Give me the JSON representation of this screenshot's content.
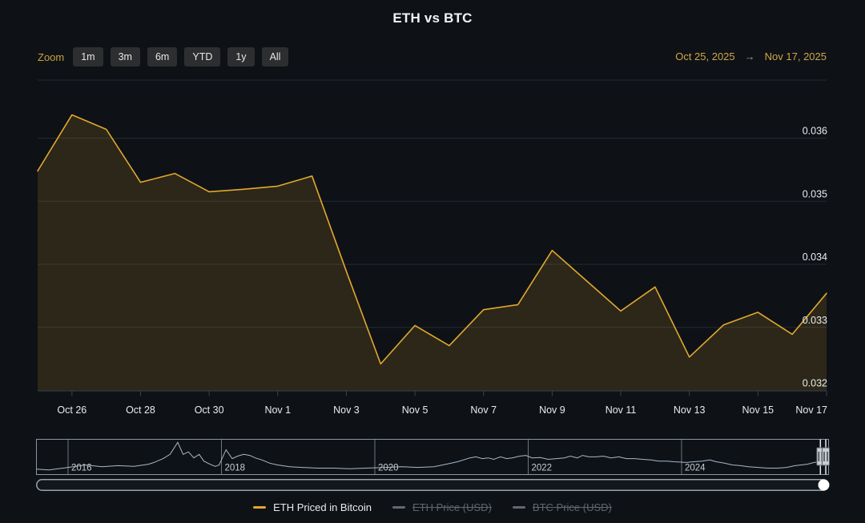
{
  "title": "ETH vs BTC",
  "toolbar": {
    "zoom_label": "Zoom",
    "range_buttons": [
      "1m",
      "3m",
      "6m",
      "YTD",
      "1y",
      "All"
    ],
    "date_from": "Oct 25, 2025",
    "arrow": "→",
    "date_to": "Nov 17, 2025"
  },
  "legend": [
    {
      "label": "ETH Priced in Bitcoin",
      "color": "#E2A82E",
      "enabled": true
    },
    {
      "label": "ETH Price (USD)",
      "color": "#62686F",
      "enabled": false
    },
    {
      "label": "BTC Price (USD)",
      "color": "#62686F",
      "enabled": false
    }
  ],
  "colors": {
    "background": "#0E1217",
    "accent_gold": "#E2A82E",
    "area_fill": "rgba(226,168,45,0.14)",
    "gold_text": "#CFA445",
    "grid": "#242A32",
    "axis_line": "#3A414C",
    "text_primary": "#E8EBEE",
    "text_muted": "#9AA1A9",
    "disabled": "#5F656D",
    "navigator_line": "#A9B7C6",
    "navigator_border": "#8E959D",
    "year_line": "#6E747C",
    "year_text": "#C9CDD2",
    "handle_fill": "#C9CCD1",
    "handle_stroke": "#5A5F66",
    "scrollbar_border": "#9AA1A9",
    "scrollbar_thumb": "#FFFFFF"
  },
  "chart_data": {
    "type": "line",
    "title": "ETH vs BTC",
    "series_name": "ETH Priced in Bitcoin",
    "xlabel": "",
    "ylabel": "",
    "ylim": [
      0.032,
      0.0369
    ],
    "grid": true,
    "legend_position": "bottom",
    "y_ticks": [
      0.036,
      0.035,
      0.034,
      0.033,
      0.032
    ],
    "y_tick_labels": [
      "0.036",
      "0.035",
      "0.034",
      "0.033",
      "0.032"
    ],
    "x_tick_labels": [
      "Oct 26",
      "Oct 28",
      "Oct 30",
      "Nov 1",
      "Nov 3",
      "Nov 5",
      "Nov 7",
      "Nov 9",
      "Nov 11",
      "Nov 13",
      "Nov 15",
      "Nov 17"
    ],
    "dates": [
      "Oct 25",
      "Oct 26",
      "Oct 27",
      "Oct 28",
      "Oct 29",
      "Oct 30",
      "Oct 31",
      "Nov 1",
      "Nov 2",
      "Nov 3",
      "Nov 4",
      "Nov 5",
      "Nov 6",
      "Nov 7",
      "Nov 8",
      "Nov 9",
      "Nov 10",
      "Nov 11",
      "Nov 12",
      "Nov 13",
      "Nov 14",
      "Nov 15",
      "Nov 16",
      "Nov 17"
    ],
    "values": [
      0.03548,
      0.03637,
      0.03614,
      0.0353,
      0.03544,
      0.03515,
      0.03519,
      0.03524,
      0.0354,
      0.03389,
      0.03242,
      0.03303,
      0.03271,
      0.03328,
      0.03336,
      0.03422,
      0.03374,
      0.03326,
      0.03364,
      0.03253,
      0.03304,
      0.03324,
      0.03289,
      0.03354
    ],
    "navigator": {
      "year_labels": [
        "2016",
        "2018",
        "2020",
        "2022",
        "2024"
      ],
      "year_values": [
        2016,
        2018,
        2020,
        2022,
        2024
      ],
      "selected_range_years": [
        2025.81,
        2025.88
      ],
      "points": [
        [
          2015.59,
          0.13
        ],
        [
          2015.75,
          0.11
        ],
        [
          2016.0,
          0.18
        ],
        [
          2016.23,
          0.25
        ],
        [
          2016.44,
          0.2
        ],
        [
          2016.65,
          0.23
        ],
        [
          2016.86,
          0.21
        ],
        [
          2017.05,
          0.27
        ],
        [
          2017.12,
          0.32
        ],
        [
          2017.24,
          0.43
        ],
        [
          2017.33,
          0.55
        ],
        [
          2017.43,
          0.89
        ],
        [
          2017.5,
          0.55
        ],
        [
          2017.57,
          0.62
        ],
        [
          2017.64,
          0.45
        ],
        [
          2017.71,
          0.55
        ],
        [
          2017.77,
          0.36
        ],
        [
          2017.85,
          0.27
        ],
        [
          2017.92,
          0.21
        ],
        [
          2017.97,
          0.25
        ],
        [
          2018.06,
          0.68
        ],
        [
          2018.14,
          0.43
        ],
        [
          2018.21,
          0.5
        ],
        [
          2018.29,
          0.55
        ],
        [
          2018.37,
          0.52
        ],
        [
          2018.44,
          0.45
        ],
        [
          2018.53,
          0.39
        ],
        [
          2018.63,
          0.3
        ],
        [
          2018.73,
          0.25
        ],
        [
          2018.89,
          0.2
        ],
        [
          2019.05,
          0.18
        ],
        [
          2019.26,
          0.16
        ],
        [
          2019.47,
          0.16
        ],
        [
          2019.67,
          0.14
        ],
        [
          2019.88,
          0.16
        ],
        [
          2020.14,
          0.18
        ],
        [
          2020.35,
          0.2
        ],
        [
          2020.56,
          0.18
        ],
        [
          2020.77,
          0.2
        ],
        [
          2020.93,
          0.27
        ],
        [
          2021.08,
          0.34
        ],
        [
          2021.24,
          0.45
        ],
        [
          2021.32,
          0.48
        ],
        [
          2021.4,
          0.43
        ],
        [
          2021.48,
          0.45
        ],
        [
          2021.55,
          0.41
        ],
        [
          2021.64,
          0.48
        ],
        [
          2021.72,
          0.43
        ],
        [
          2021.79,
          0.45
        ],
        [
          2021.89,
          0.5
        ],
        [
          2021.97,
          0.52
        ],
        [
          2022.05,
          0.45
        ],
        [
          2022.16,
          0.46
        ],
        [
          2022.26,
          0.41
        ],
        [
          2022.37,
          0.43
        ],
        [
          2022.47,
          0.45
        ],
        [
          2022.55,
          0.5
        ],
        [
          2022.64,
          0.45
        ],
        [
          2022.71,
          0.52
        ],
        [
          2022.79,
          0.48
        ],
        [
          2022.89,
          0.48
        ],
        [
          2022.98,
          0.5
        ],
        [
          2023.08,
          0.45
        ],
        [
          2023.18,
          0.48
        ],
        [
          2023.28,
          0.43
        ],
        [
          2023.39,
          0.43
        ],
        [
          2023.49,
          0.41
        ],
        [
          2023.6,
          0.39
        ],
        [
          2023.7,
          0.36
        ],
        [
          2023.81,
          0.36
        ],
        [
          2023.9,
          0.34
        ],
        [
          2024.06,
          0.32
        ],
        [
          2024.16,
          0.34
        ],
        [
          2024.27,
          0.36
        ],
        [
          2024.37,
          0.39
        ],
        [
          2024.45,
          0.34
        ],
        [
          2024.56,
          0.3
        ],
        [
          2024.66,
          0.25
        ],
        [
          2024.77,
          0.23
        ],
        [
          2024.87,
          0.2
        ],
        [
          2025.0,
          0.18
        ],
        [
          2025.12,
          0.16
        ],
        [
          2025.25,
          0.16
        ],
        [
          2025.37,
          0.18
        ],
        [
          2025.48,
          0.23
        ],
        [
          2025.56,
          0.25
        ],
        [
          2025.64,
          0.27
        ],
        [
          2025.73,
          0.32
        ],
        [
          2025.81,
          0.34
        ],
        [
          2025.88,
          0.36
        ]
      ]
    }
  }
}
